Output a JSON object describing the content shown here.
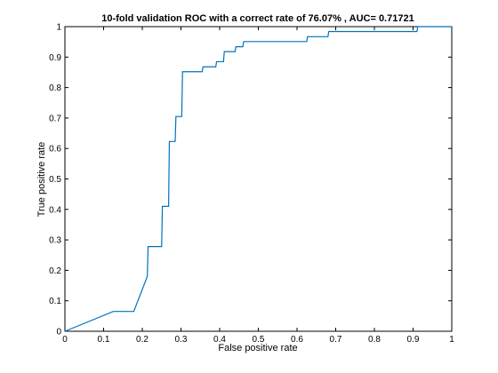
{
  "chart_data": {
    "type": "line",
    "title": "10-fold validation ROC with a correct rate of 76.07% , AUC= 0.71721",
    "xlabel": "False positive rate",
    "ylabel": "True positive rate",
    "xlim": [
      0,
      1
    ],
    "ylim": [
      0,
      1
    ],
    "xticks": [
      "0",
      "0.1",
      "0.2",
      "0.3",
      "0.4",
      "0.5",
      "0.6",
      "0.7",
      "0.8",
      "0.9",
      "1"
    ],
    "yticks": [
      "0",
      "0.1",
      "0.2",
      "0.3",
      "0.4",
      "0.5",
      "0.6",
      "0.7",
      "0.8",
      "0.9",
      "1"
    ],
    "grid": false,
    "legend": "none",
    "series": [
      {
        "color": "#0072bd",
        "x": [
          0,
          0.125,
          0.178,
          0.213,
          0.215,
          0.25,
          0.252,
          0.268,
          0.27,
          0.285,
          0.287,
          0.302,
          0.304,
          0.355,
          0.357,
          0.39,
          0.392,
          0.41,
          0.412,
          0.44,
          0.442,
          0.46,
          0.462,
          0.625,
          0.627,
          0.68,
          0.682,
          0.91,
          0.912,
          1.0
        ],
        "y": [
          0,
          0.065,
          0.065,
          0.18,
          0.278,
          0.278,
          0.41,
          0.41,
          0.623,
          0.623,
          0.705,
          0.705,
          0.852,
          0.852,
          0.868,
          0.868,
          0.885,
          0.885,
          0.918,
          0.918,
          0.934,
          0.934,
          0.951,
          0.951,
          0.967,
          0.967,
          0.984,
          0.984,
          1.0,
          1.0
        ]
      }
    ]
  }
}
